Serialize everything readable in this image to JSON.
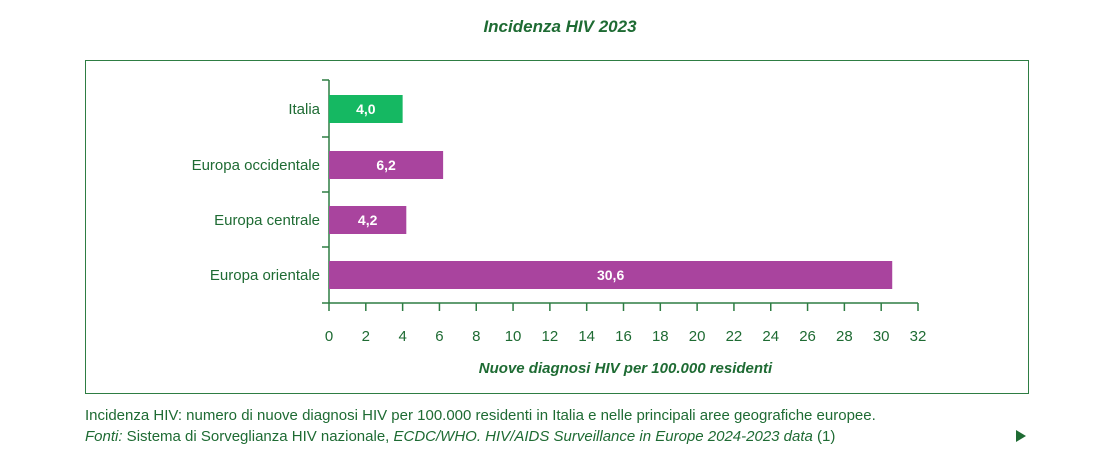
{
  "chart_data": {
    "type": "bar",
    "orientation": "horizontal",
    "title": "Incidenza HIV 2023",
    "categories": [
      "Italia",
      "Europa occidentale",
      "Europa centrale",
      "Europa orientale"
    ],
    "values": [
      4.0,
      6.2,
      4.2,
      30.6
    ],
    "value_labels": [
      "4,0",
      "6,2",
      "4,2",
      "30,6"
    ],
    "bar_colors": [
      "#15b862",
      "#a9449e",
      "#a9449e",
      "#a9449e"
    ],
    "xlabel": "Nuove diagnosi HIV per 100.000 residenti",
    "xlim": [
      0,
      32
    ],
    "xticks": [
      0,
      2,
      4,
      6,
      8,
      10,
      12,
      14,
      16,
      18,
      20,
      22,
      24,
      26,
      28,
      30,
      32
    ],
    "grid": false
  },
  "footer": {
    "description": "Incidenza HIV: numero di nuove diagnosi HIV per 100.000 residenti in Italia e nelle principali aree geografiche europee.",
    "sources_label": "Fonti:",
    "sources_plain": " Sistema di Sorveglianza HIV nazionale, ",
    "sources_italic": "ECDC/WHO. HIV/AIDS Surveillance in Europe 2024-2023 data",
    "sources_ref": " (1)"
  },
  "colors": {
    "text": "#1e6b33",
    "frame": "#2e7d43",
    "italia": "#15b862",
    "europe": "#a9449e"
  }
}
